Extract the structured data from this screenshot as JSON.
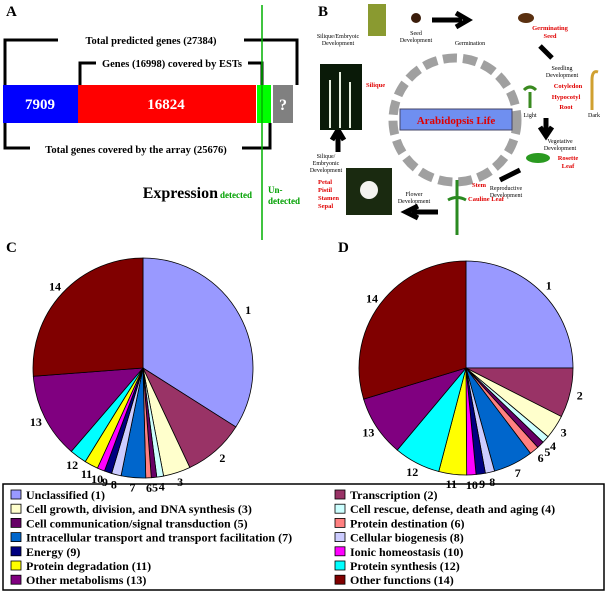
{
  "panel_a": {
    "label": "A",
    "total": "Total predicted genes (27384)",
    "est": "Genes (16998) covered by ESTs",
    "array": "Total genes covered by the array (25676)",
    "segments": [
      7909,
      16824,
      "?"
    ],
    "expression": "Expression",
    "detected": "detected",
    "undetected": [
      "Un-",
      "detected"
    ]
  },
  "panel_b": {
    "label": "B",
    "center": "Arabidopsis Life",
    "stages": {
      "silique_top": [
        "Silique/Embryoic",
        "Development"
      ],
      "seed": [
        "Seed",
        "Development"
      ],
      "germination": "Germination",
      "seedling": [
        "Seedling",
        "Development"
      ],
      "vegetative": [
        "Vegetative",
        "Development"
      ],
      "reproductive": [
        "Reproductive",
        "Development"
      ],
      "flower": [
        "Flower",
        "Development"
      ],
      "silique_left": [
        "Silique/",
        "Embryonic",
        "Development"
      ],
      "light": "Light",
      "dark": "Dark"
    },
    "organs": {
      "germinating_seed": [
        "Germinating",
        "Seed"
      ],
      "cotyledon": "Cotyledon",
      "hypocotyl": "Hypocotyl",
      "root": "Root",
      "rosette": [
        "Rosette",
        "Leaf"
      ],
      "stem": "Stem",
      "cauline": "Cauline Leaf",
      "flower_parts": [
        "Petal",
        "Pistil",
        "Stamen",
        "Sepal"
      ],
      "silique": "Silique"
    }
  },
  "chart_data": [
    {
      "type": "pie",
      "panel_label": "C",
      "categories": [
        "1",
        "2",
        "3",
        "4",
        "5",
        "6",
        "7",
        "8",
        "9",
        "10",
        "11",
        "12",
        "13",
        "14"
      ],
      "values": [
        34,
        9,
        4,
        1,
        0.8,
        0.8,
        3.6,
        1.4,
        1.1,
        1.1,
        2,
        2.5,
        12.5,
        26.2
      ],
      "colors": [
        "#9999ff",
        "#993366",
        "#ffffcc",
        "#ccffff",
        "#660066",
        "#ff8080",
        "#0066cc",
        "#ccccff",
        "#000080",
        "#ff00ff",
        "#ffff00",
        "#00ffff",
        "#800080",
        "#800000"
      ]
    },
    {
      "type": "pie",
      "panel_label": "D",
      "categories": [
        "1",
        "2",
        "3",
        "4",
        "5",
        "6",
        "7",
        "8",
        "9",
        "10",
        "11",
        "12",
        "13",
        "14"
      ],
      "values": [
        25,
        7.5,
        3.6,
        1.1,
        1.1,
        1.4,
        6,
        1.4,
        1.4,
        1.4,
        4.2,
        7,
        9.2,
        29.7
      ],
      "colors": [
        "#9999ff",
        "#993366",
        "#ffffcc",
        "#ccffff",
        "#660066",
        "#ff8080",
        "#0066cc",
        "#ccccff",
        "#000080",
        "#ff00ff",
        "#ffff00",
        "#00ffff",
        "#800080",
        "#800000"
      ]
    }
  ],
  "legend": [
    "Unclassified (1)",
    "Transcription (2)",
    "Cell growth, division, and DNA synthesis (3)",
    "Cell rescue, defense, death and aging (4)",
    "Cell communication/signal transduction (5)",
    "Protein destination (6)",
    "Intracellular transport and transport facilitation (7)",
    "Cellular biogenesis (8)",
    "Energy (9)",
    "Ionic homeostasis (10)",
    "Protein degradation (11)",
    "Protein synthesis (12)",
    "Other metabolisms (13)",
    "Other functions (14)"
  ]
}
